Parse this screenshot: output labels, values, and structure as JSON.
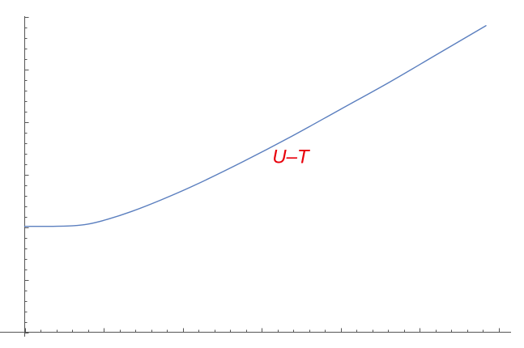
{
  "chart_data": {
    "type": "line",
    "title": "",
    "xlabel": "",
    "ylabel": "",
    "xlim": [
      0,
      1
    ],
    "ylim": [
      0,
      1
    ],
    "grid": false,
    "legend": "none",
    "line_color": "#5b7fbf",
    "annotation_color": "#e8000b",
    "series": [
      {
        "x": [
          0.0,
          0.05,
          0.1,
          0.13,
          0.17,
          0.22,
          0.28,
          0.35,
          0.45,
          0.55,
          0.65,
          0.75,
          0.85,
          0.95
        ],
        "y": [
          0.335,
          0.335,
          0.337,
          0.342,
          0.357,
          0.382,
          0.418,
          0.465,
          0.54,
          0.62,
          0.705,
          0.79,
          0.88,
          0.97
        ]
      }
    ],
    "annotations": [
      {
        "text": "U–T",
        "x": 0.51,
        "y": 0.535
      }
    ]
  }
}
